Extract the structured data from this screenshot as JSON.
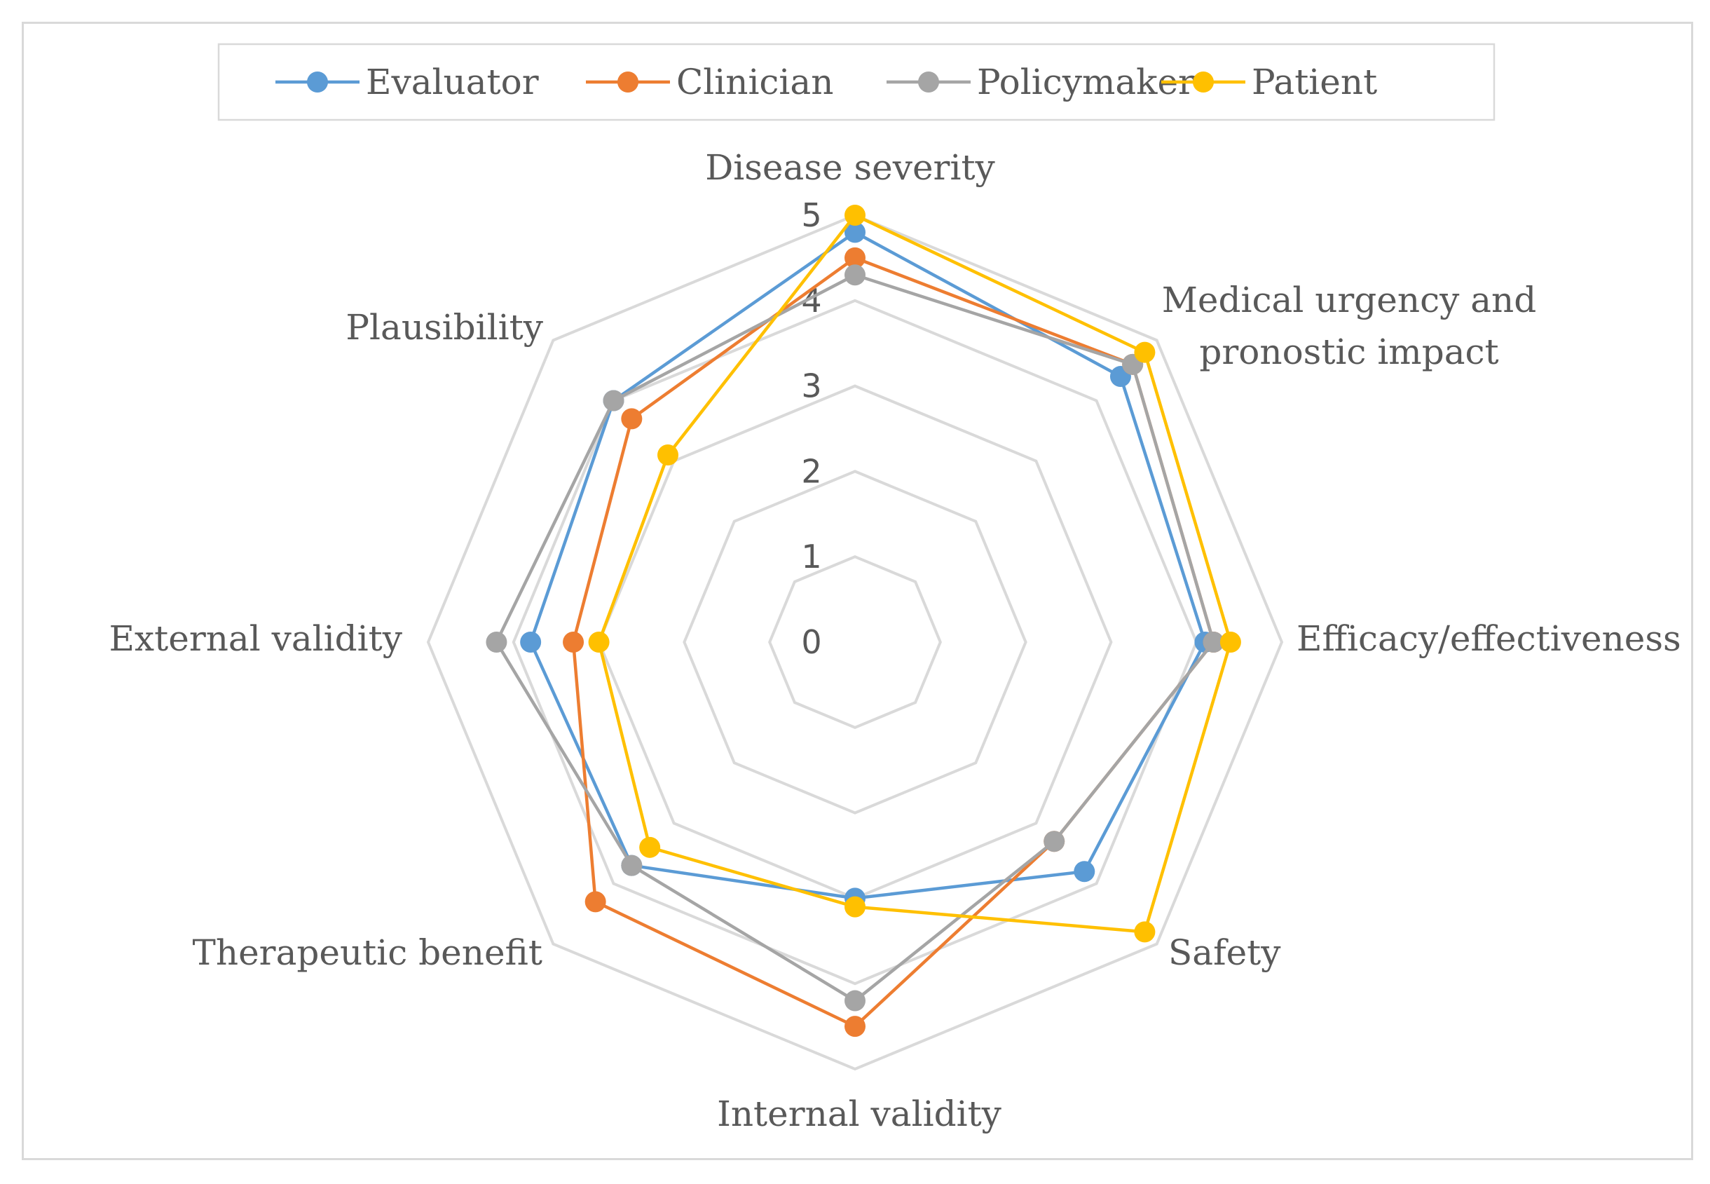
{
  "chart_data": {
    "type": "radar",
    "title": "",
    "axes": [
      [
        "Disease severity"
      ],
      [
        "Medical urgency and",
        "pronostic impact"
      ],
      [
        "Efficacy/effectiveness"
      ],
      [
        "Safety"
      ],
      [
        "Internal validity"
      ],
      [
        "Therapeutic benefit"
      ],
      [
        "External validity"
      ],
      [
        "Plausibility"
      ]
    ],
    "rlim": [
      0,
      5
    ],
    "ticks": [
      "0",
      "1",
      "2",
      "3",
      "4",
      "5"
    ],
    "legend_position": "top",
    "series": [
      {
        "name": "Evaluator",
        "color": "#5b9bd5",
        "values": [
          4.8,
          4.4,
          4.1,
          3.8,
          3.0,
          3.7,
          3.8,
          4.0
        ]
      },
      {
        "name": "Clinician",
        "color": "#ed7d31",
        "values": [
          4.5,
          4.6,
          4.2,
          3.3,
          4.5,
          4.3,
          3.3,
          3.7
        ]
      },
      {
        "name": "Policymaker",
        "color": "#a5a5a5",
        "values": [
          4.3,
          4.6,
          4.2,
          3.3,
          4.2,
          3.7,
          4.2,
          4.0
        ]
      },
      {
        "name": "Patient",
        "color": "#ffc000",
        "values": [
          5.0,
          4.8,
          4.4,
          4.8,
          3.1,
          3.4,
          3.0,
          3.1
        ]
      }
    ]
  }
}
